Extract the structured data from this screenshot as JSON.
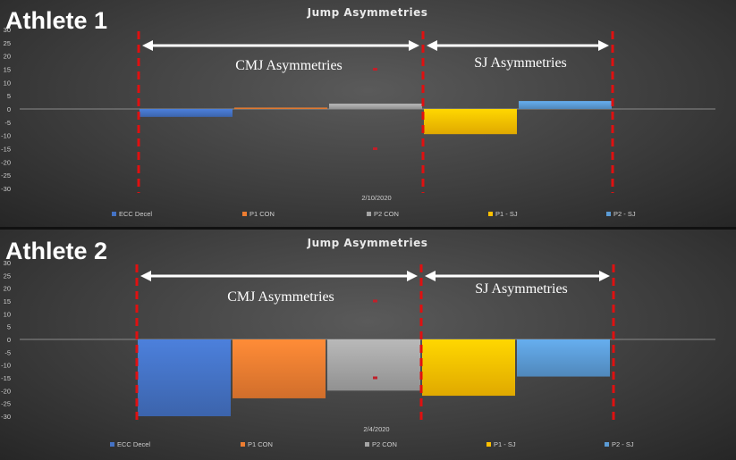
{
  "colors": {
    "ECC Decel": "#4472c4",
    "P1 CON": "#ed7d31",
    "P2 CON": "#a5a5a5",
    "P1 - SJ": "#ffc000",
    "P2 - SJ": "#5b9bd5",
    "divider": "#e01010",
    "arrow": "#ffffff"
  },
  "chart_data": [
    {
      "type": "bar",
      "panel_label": "Athlete 1",
      "title": "Jump Asymmetries",
      "category": "2/10/2020",
      "ylim": [
        -30,
        30
      ],
      "yticks": [
        30,
        25,
        20,
        15,
        10,
        5,
        0,
        -5,
        -10,
        -15,
        -20,
        -25,
        -30
      ],
      "series": [
        {
          "name": "ECC Decel",
          "value": -3
        },
        {
          "name": "P1 CON",
          "value": 0.5
        },
        {
          "name": "P2 CON",
          "value": 2
        },
        {
          "name": "P1 - SJ",
          "value": -9.5
        },
        {
          "name": "P2 - SJ",
          "value": 3
        }
      ],
      "markers": [
        15,
        -15
      ],
      "regions": [
        {
          "label": "CMJ Asymmetries",
          "from": "ECC Decel",
          "to": "P2 CON"
        },
        {
          "label": "SJ Asymmetries",
          "from": "P1 - SJ",
          "to": "P2 - SJ"
        }
      ]
    },
    {
      "type": "bar",
      "panel_label": "Athlete 2",
      "title": "Jump Asymmetries",
      "category": "2/4/2020",
      "ylim": [
        -30,
        30
      ],
      "yticks": [
        30,
        25,
        20,
        15,
        10,
        5,
        0,
        -5,
        -10,
        -15,
        -20,
        -25,
        -30
      ],
      "series": [
        {
          "name": "ECC Decel",
          "value": -30
        },
        {
          "name": "P1 CON",
          "value": -23
        },
        {
          "name": "P2 CON",
          "value": -20
        },
        {
          "name": "P1 - SJ",
          "value": -22
        },
        {
          "name": "P2 - SJ",
          "value": -14.5
        }
      ],
      "markers": [
        15,
        -15
      ],
      "regions": [
        {
          "label": "CMJ Asymmetries",
          "from": "ECC Decel",
          "to": "P2 CON"
        },
        {
          "label": "SJ Asymmetries",
          "from": "P1 - SJ",
          "to": "P2 - SJ"
        }
      ]
    }
  ]
}
